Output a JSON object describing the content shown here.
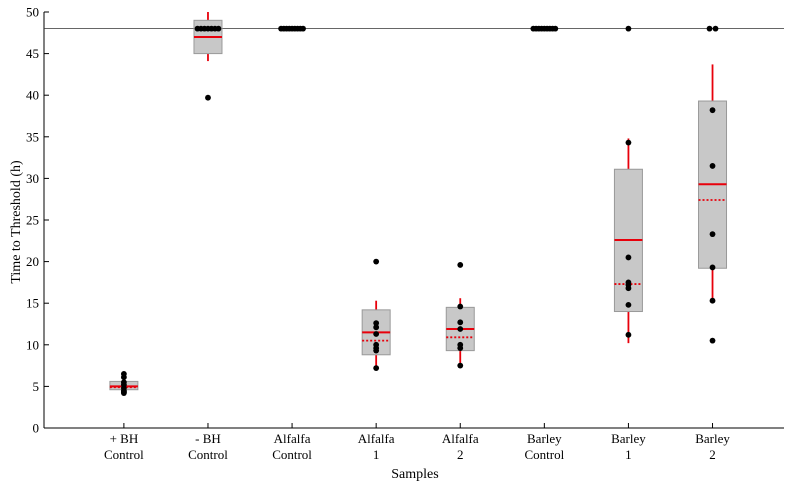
{
  "chart_data": {
    "type": "box",
    "title": "",
    "xlabel": "Samples",
    "ylabel": "Time to Threshold (h)",
    "ylim": [
      0,
      50
    ],
    "yticks": [
      0,
      5,
      10,
      15,
      20,
      25,
      30,
      35,
      40,
      45,
      50
    ],
    "threshold_line": 48,
    "grid": false,
    "colors": {
      "box_fill": "#c8c8c8",
      "box_edge": "#999999",
      "median": "#e8000b",
      "whisker": "#e8000b",
      "point": "#000000",
      "axis": "#000000"
    },
    "categories": [
      {
        "label_line1": "+ BH",
        "label_line2": "Control",
        "q1": 4.6,
        "q3": 5.6,
        "median": 5.0,
        "mean": 4.9,
        "whisker_low": 4.3,
        "whisker_high": 5.6,
        "points": [
          4.2,
          4.3,
          4.4,
          4.5,
          4.8,
          5.2,
          5.5,
          6.1,
          6.5
        ]
      },
      {
        "label_line1": "- BH",
        "label_line2": "Control",
        "q1": 45.0,
        "q3": 49.0,
        "median": 47.0,
        "mean": 47.0,
        "whisker_low": 44.1,
        "whisker_high": 50.0,
        "points": [
          48,
          48,
          48,
          48,
          48,
          48,
          48,
          39.7
        ]
      },
      {
        "label_line1": "Alfalfa",
        "label_line2": "Control",
        "q1": 48,
        "q3": 48,
        "median": 48,
        "mean": 48,
        "whisker_low": 48,
        "whisker_high": 48,
        "points": [
          48,
          48,
          48,
          48,
          48,
          48,
          48,
          48,
          48
        ]
      },
      {
        "label_line1": "Alfalfa",
        "label_line2": "1",
        "q1": 8.8,
        "q3": 14.2,
        "median": 11.5,
        "mean": 10.5,
        "whisker_low": 7.0,
        "whisker_high": 15.3,
        "points": [
          20.0,
          12.6,
          12.1,
          11.3,
          10.0,
          9.6,
          9.3,
          7.2
        ]
      },
      {
        "label_line1": "Alfalfa",
        "label_line2": "2",
        "q1": 9.3,
        "q3": 14.5,
        "median": 11.9,
        "mean": 10.9,
        "whisker_low": 7.8,
        "whisker_high": 15.6,
        "points": [
          19.6,
          14.6,
          12.7,
          11.9,
          10.0,
          9.6,
          7.5
        ]
      },
      {
        "label_line1": "Barley",
        "label_line2": "Control",
        "q1": 48,
        "q3": 48,
        "median": 48,
        "mean": 48,
        "whisker_low": 48,
        "whisker_high": 48,
        "points": [
          48,
          48,
          48,
          48,
          48,
          48,
          48,
          48,
          48
        ]
      },
      {
        "label_line1": "Barley",
        "label_line2": "1",
        "q1": 14.0,
        "q3": 31.1,
        "median": 22.6,
        "mean": 17.3,
        "whisker_low": 10.2,
        "whisker_high": 34.8,
        "points": [
          48,
          34.3,
          20.5,
          17.5,
          17.2,
          16.8,
          14.8,
          11.2
        ]
      },
      {
        "label_line1": "Barley",
        "label_line2": "2",
        "q1": 19.2,
        "q3": 39.3,
        "median": 29.3,
        "mean": 27.4,
        "whisker_low": 15.0,
        "whisker_high": 43.7,
        "points": [
          48,
          48,
          38.2,
          31.5,
          23.3,
          19.3,
          15.3,
          10.5
        ]
      }
    ]
  }
}
